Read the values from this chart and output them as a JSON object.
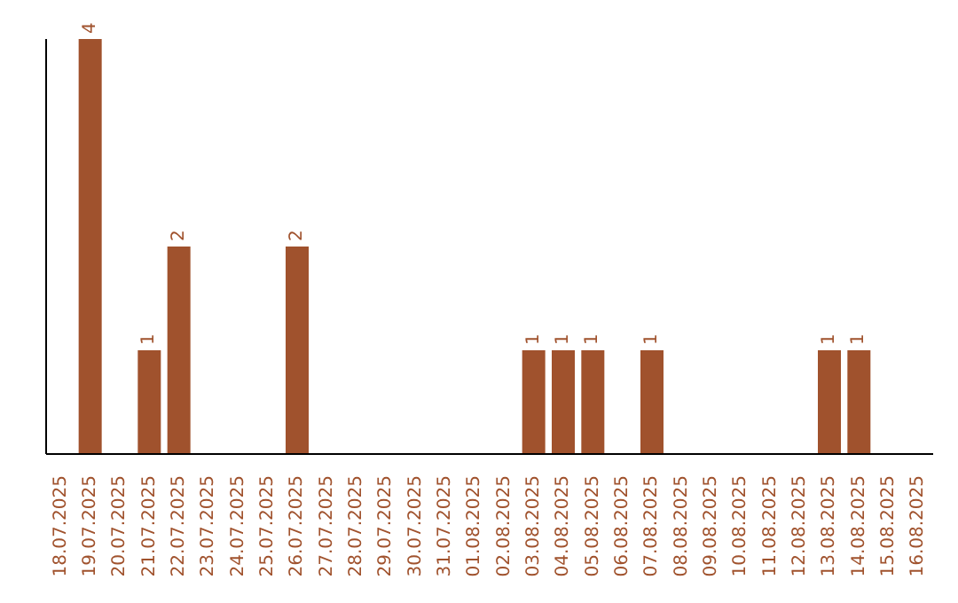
{
  "chart_data": {
    "type": "bar",
    "categories": [
      "18.07.2025",
      "19.07.2025",
      "20.07.2025",
      "21.07.2025",
      "22.07.2025",
      "23.07.2025",
      "24.07.2025",
      "25.07.2025",
      "26.07.2025",
      "27.07.2025",
      "28.07.2025",
      "29.07.2025",
      "30.07.2025",
      "31.07.2025",
      "01.08.2025",
      "02.08.2025",
      "03.08.2025",
      "04.08.2025",
      "05.08.2025",
      "06.08.2025",
      "07.08.2025",
      "08.08.2025",
      "09.08.2025",
      "10.08.2025",
      "11.08.2025",
      "12.08.2025",
      "13.08.2025",
      "14.08.2025",
      "15.08.2025",
      "16.08.2025"
    ],
    "values": [
      0,
      4,
      0,
      1,
      2,
      0,
      0,
      0,
      2,
      0,
      0,
      0,
      0,
      0,
      0,
      0,
      1,
      1,
      1,
      0,
      1,
      0,
      0,
      0,
      0,
      0,
      1,
      1,
      0,
      0
    ],
    "value_labels": [
      null,
      "4",
      null,
      "1",
      "2",
      null,
      null,
      null,
      "2",
      null,
      null,
      null,
      null,
      null,
      null,
      null,
      "1",
      "1",
      "1",
      null,
      "1",
      null,
      null,
      null,
      null,
      null,
      "1",
      "1",
      null,
      null
    ],
    "color": "#a0522d"
  }
}
